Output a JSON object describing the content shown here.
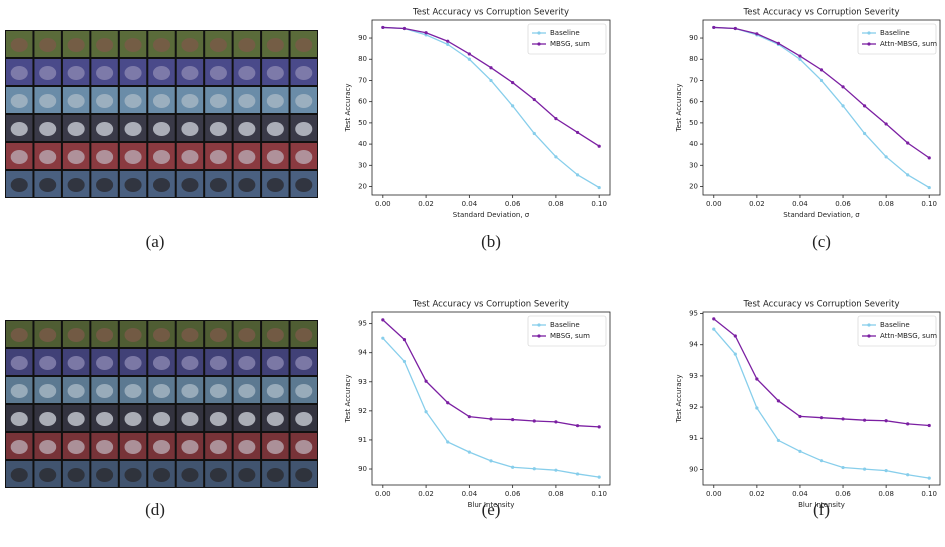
{
  "image_panels": [
    {
      "caption": "(a)"
    },
    {
      "caption": "(d)"
    }
  ],
  "chart_data": [
    {
      "type": "line",
      "title": "Test Accuracy vs Corruption Severity",
      "xlabel": "Standard Deviation, σ",
      "ylabel": "Test Accuracy",
      "caption": "(b)",
      "x": [
        0,
        0.01,
        0.02,
        0.03,
        0.04,
        0.05,
        0.06,
        0.07,
        0.08,
        0.09,
        0.1
      ],
      "series": [
        {
          "name": "Baseline",
          "color": "#87ceeb",
          "values": [
            95,
            94.5,
            91.5,
            87,
            80,
            70,
            58,
            45,
            34,
            25.5,
            19.5
          ]
        },
        {
          "name": "MBSG, sum",
          "color": "#7b1fa2",
          "values": [
            95,
            94.5,
            92.5,
            88.5,
            82.5,
            76,
            69,
            61,
            52,
            45.5,
            39
          ]
        }
      ],
      "xlim": [
        -0.005,
        0.105
      ],
      "ylim": [
        16,
        98.5
      ],
      "xticks": [
        {
          "value": 0,
          "label": "0.00"
        },
        {
          "value": 0.02,
          "label": "0.02"
        },
        {
          "value": 0.04,
          "label": "0.04"
        },
        {
          "value": 0.06,
          "label": "0.06"
        },
        {
          "value": 0.08,
          "label": "0.08"
        },
        {
          "value": 0.1,
          "label": "0.10"
        }
      ],
      "yticks": [
        20,
        30,
        40,
        50,
        60,
        70,
        80,
        90
      ],
      "grid": false,
      "legend": "upper right"
    },
    {
      "type": "line",
      "title": "Test Accuracy vs Corruption Severity",
      "xlabel": "Standard Deviation, σ",
      "ylabel": "Test Accuracy",
      "caption": "(c)",
      "x": [
        0,
        0.01,
        0.02,
        0.03,
        0.04,
        0.05,
        0.06,
        0.07,
        0.08,
        0.09,
        0.1
      ],
      "series": [
        {
          "name": "Baseline",
          "color": "#87ceeb",
          "values": [
            95,
            94.5,
            91.5,
            87,
            80,
            70,
            58,
            45,
            34,
            25.5,
            19.5
          ]
        },
        {
          "name": "Attn-MBSG, sum",
          "color": "#7b1fa2",
          "values": [
            95,
            94.5,
            92,
            87.5,
            81.5,
            75,
            67,
            58,
            49.5,
            40.5,
            33.5
          ]
        }
      ],
      "xlim": [
        -0.005,
        0.105
      ],
      "ylim": [
        16,
        98.5
      ],
      "xticks": [
        {
          "value": 0,
          "label": "0.00"
        },
        {
          "value": 0.02,
          "label": "0.02"
        },
        {
          "value": 0.04,
          "label": "0.04"
        },
        {
          "value": 0.06,
          "label": "0.06"
        },
        {
          "value": 0.08,
          "label": "0.08"
        },
        {
          "value": 0.1,
          "label": "0.10"
        }
      ],
      "yticks": [
        20,
        30,
        40,
        50,
        60,
        70,
        80,
        90
      ],
      "grid": false,
      "legend": "upper right"
    },
    {
      "type": "line",
      "title": "Test Accuracy vs Corruption Severity",
      "xlabel": "Blur Intensity",
      "ylabel": "Test Accuracy",
      "caption": "(e)",
      "x": [
        0,
        0.01,
        0.02,
        0.03,
        0.04,
        0.05,
        0.06,
        0.07,
        0.08,
        0.09,
        0.1
      ],
      "series": [
        {
          "name": "Baseline",
          "color": "#87ceeb",
          "values": [
            94.5,
            93.7,
            91.97,
            90.93,
            90.58,
            90.28,
            90.06,
            90.01,
            89.96,
            89.83,
            89.72
          ]
        },
        {
          "name": "MBSG, sum",
          "color": "#7b1fa2",
          "values": [
            95.13,
            94.45,
            93.02,
            92.28,
            91.8,
            91.72,
            91.7,
            91.65,
            91.62,
            91.49,
            91.45
          ]
        }
      ],
      "xlim": [
        -0.005,
        0.105
      ],
      "ylim": [
        89.45,
        95.4
      ],
      "xticks": [
        {
          "value": 0,
          "label": "0.00"
        },
        {
          "value": 0.02,
          "label": "0.02"
        },
        {
          "value": 0.04,
          "label": "0.04"
        },
        {
          "value": 0.06,
          "label": "0.06"
        },
        {
          "value": 0.08,
          "label": "0.08"
        },
        {
          "value": 0.1,
          "label": "0.10"
        }
      ],
      "yticks": [
        90,
        91,
        92,
        93,
        94,
        95
      ],
      "grid": false,
      "legend": "upper right"
    },
    {
      "type": "line",
      "title": "Test Accuracy vs Corruption Severity",
      "xlabel": "Blur Intensity",
      "ylabel": "Test Accuracy",
      "caption": "(f)",
      "x": [
        0,
        0.01,
        0.02,
        0.03,
        0.04,
        0.05,
        0.06,
        0.07,
        0.08,
        0.09,
        0.1
      ],
      "series": [
        {
          "name": "Baseline",
          "color": "#87ceeb",
          "values": [
            94.5,
            93.7,
            91.97,
            90.93,
            90.58,
            90.28,
            90.06,
            90.01,
            89.96,
            89.83,
            89.72
          ]
        },
        {
          "name": "Attn-MBSG, sum",
          "color": "#7b1fa2",
          "values": [
            94.83,
            94.28,
            92.9,
            92.2,
            91.7,
            91.66,
            91.62,
            91.58,
            91.56,
            91.46,
            91.41
          ]
        }
      ],
      "xlim": [
        -0.005,
        0.105
      ],
      "ylim": [
        89.5,
        95.05
      ],
      "xticks": [
        {
          "value": 0,
          "label": "0.00"
        },
        {
          "value": 0.02,
          "label": "0.02"
        },
        {
          "value": 0.04,
          "label": "0.04"
        },
        {
          "value": 0.06,
          "label": "0.06"
        },
        {
          "value": 0.08,
          "label": "0.08"
        },
        {
          "value": 0.1,
          "label": "0.10"
        }
      ],
      "yticks": [
        90,
        91,
        92,
        93,
        94,
        95
      ],
      "grid": false,
      "legend": "upper right"
    }
  ]
}
